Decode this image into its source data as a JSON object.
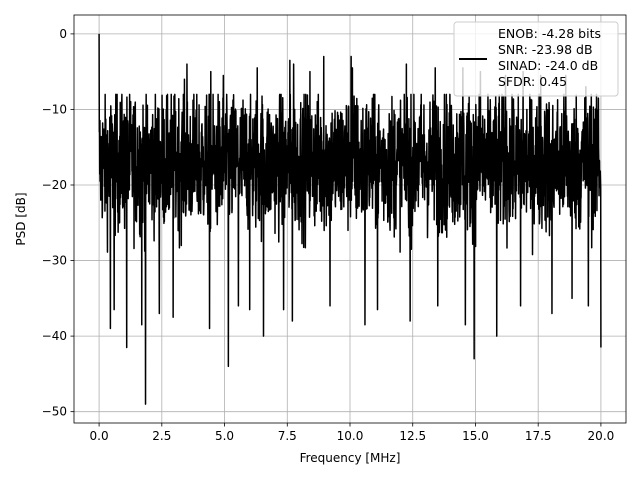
{
  "chart_data": {
    "type": "line",
    "title": "",
    "xlabel": "Frequency [MHz]",
    "ylabel": "PSD [dB]",
    "xlim": [
      -1,
      21
    ],
    "ylim": [
      -51.5,
      2.5
    ],
    "x_ticks": [
      0.0,
      2.5,
      5.0,
      7.5,
      10.0,
      12.5,
      15.0,
      17.5,
      20.0
    ],
    "x_tick_labels": [
      "0.0",
      "2.5",
      "5.0",
      "7.5",
      "10.0",
      "12.5",
      "15.0",
      "17.5",
      "20.0"
    ],
    "y_ticks": [
      0,
      -10,
      -20,
      -30,
      -40,
      -50
    ],
    "y_tick_labels": [
      "0",
      "−10",
      "−20",
      "−30",
      "−40",
      "−50"
    ],
    "grid": true,
    "legend_position": "top-right",
    "series_color": "#000000",
    "series": [
      {
        "name": "ENOB: -4.28 bits\nSNR: -23.98 dB\nSINAD: -24.0 dB\nSFDR: 0.45",
        "x_range": [
          0,
          20
        ],
        "peak": [
          0.0,
          0.0
        ],
        "noise_floor_median": -17,
        "noise_upper_typical": -9,
        "noise_lower_typical": -27,
        "notable_minima": [
          [
            0.45,
            -39.0
          ],
          [
            0.6,
            -36.5
          ],
          [
            0.9,
            -36.5
          ],
          [
            1.1,
            -41.5
          ],
          [
            1.7,
            -38.5
          ],
          [
            1.85,
            -49.0
          ],
          [
            2.4,
            -37.0
          ],
          [
            2.95,
            -37.5
          ],
          [
            3.4,
            -37.5
          ],
          [
            4.4,
            -39.0
          ],
          [
            5.15,
            -44.0
          ],
          [
            5.55,
            -36.0
          ],
          [
            6.0,
            -36.5
          ],
          [
            6.55,
            -40.0
          ],
          [
            7.35,
            -36.5
          ],
          [
            7.7,
            -38.0
          ],
          [
            9.2,
            -36.0
          ],
          [
            10.6,
            -38.5
          ],
          [
            11.1,
            -36.5
          ],
          [
            12.4,
            -38.0
          ],
          [
            13.5,
            -36.0
          ],
          [
            14.6,
            -38.5
          ],
          [
            14.95,
            -43.0
          ],
          [
            15.85,
            -40.0
          ],
          [
            16.8,
            -36.0
          ],
          [
            18.05,
            -37.0
          ],
          [
            18.85,
            -35.0
          ],
          [
            19.5,
            -36.0
          ],
          [
            20.0,
            -41.5
          ]
        ],
        "notable_maxima": [
          [
            0.9,
            -9.5
          ],
          [
            3.4,
            -6.0
          ],
          [
            3.5,
            -4.0
          ],
          [
            4.45,
            -5.0
          ],
          [
            4.95,
            -5.5
          ],
          [
            6.3,
            -4.5
          ],
          [
            7.6,
            -3.5
          ],
          [
            7.75,
            -4.0
          ],
          [
            8.4,
            -5.0
          ],
          [
            8.95,
            -3.0
          ],
          [
            10.05,
            -3.0
          ],
          [
            10.1,
            -4.5
          ],
          [
            12.25,
            -4.0
          ],
          [
            13.4,
            -4.5
          ],
          [
            14.5,
            -4.5
          ],
          [
            15.2,
            -5.0
          ],
          [
            16.2,
            -5.5
          ],
          [
            16.9,
            -5.0
          ],
          [
            17.6,
            -5.5
          ],
          [
            18.6,
            -5.5
          ],
          [
            19.4,
            -7.0
          ],
          [
            19.9,
            -8.5
          ]
        ]
      }
    ]
  }
}
